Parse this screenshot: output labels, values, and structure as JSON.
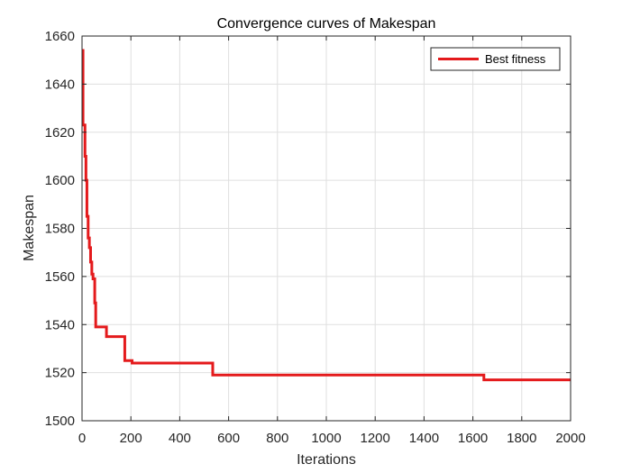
{
  "chart_data": {
    "type": "line",
    "title": "Convergence curves of Makespan",
    "xlabel": "Iterations",
    "ylabel": "Makespan",
    "xlim": [
      0,
      2000
    ],
    "ylim": [
      1500,
      1660
    ],
    "xticks": [
      0,
      200,
      400,
      600,
      800,
      1000,
      1200,
      1400,
      1600,
      1800,
      2000
    ],
    "yticks": [
      1500,
      1520,
      1540,
      1560,
      1580,
      1600,
      1620,
      1640,
      1660
    ],
    "grid": true,
    "legend_position": "top-right",
    "series": [
      {
        "name": "Best fitness",
        "color": "#e41a1c",
        "step": true,
        "x": [
          1,
          4,
          12,
          16,
          20,
          25,
          30,
          35,
          40,
          45,
          52,
          56,
          60,
          95,
          100,
          170,
          175,
          200,
          205,
          530,
          535,
          1640,
          1645,
          2000
        ],
        "y": [
          1654,
          1623,
          1610,
          1600,
          1585,
          1576,
          1572,
          1566,
          1561,
          1559,
          1549,
          1539,
          1539,
          1539,
          1535,
          1535,
          1525,
          1525,
          1524,
          1524,
          1519,
          1519,
          1517,
          1517
        ]
      }
    ]
  }
}
